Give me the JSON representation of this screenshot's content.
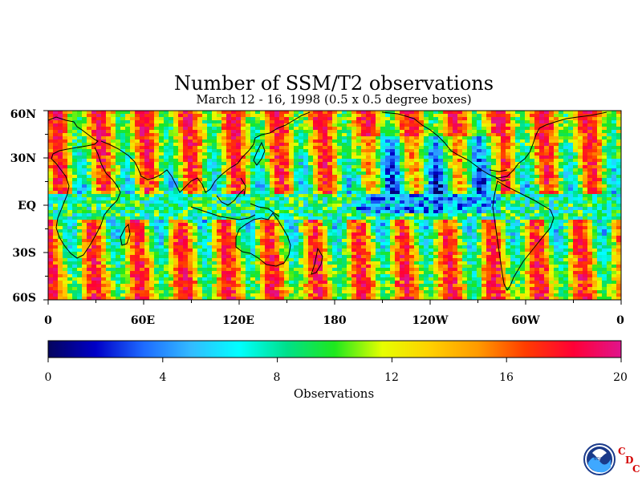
{
  "title": "Number of SSM/T2 observations",
  "subtitle": "March 12 - 16, 1998 (0.5 x 0.5 degree boxes)",
  "map": {
    "lat_ticks": [
      "60N",
      "30N",
      "EQ",
      "30S",
      "60S"
    ],
    "lon_ticks": [
      "0",
      "60E",
      "120E",
      "180",
      "120W",
      "60W",
      "0"
    ]
  },
  "colorbar": {
    "ticks": [
      "0",
      "4",
      "8",
      "12",
      "16",
      "20"
    ],
    "title": "Observations",
    "colors": [
      "#04045e",
      "#0000c8",
      "#1e6bff",
      "#33bbff",
      "#00ffff",
      "#00e08a",
      "#1ee81e",
      "#e6ff00",
      "#ffd000",
      "#ff9a00",
      "#ff3c00",
      "#ff0036",
      "#e0148c"
    ]
  },
  "logo": {
    "letters": [
      "C",
      "D",
      "C"
    ],
    "noaa_text": "NOAA"
  }
}
